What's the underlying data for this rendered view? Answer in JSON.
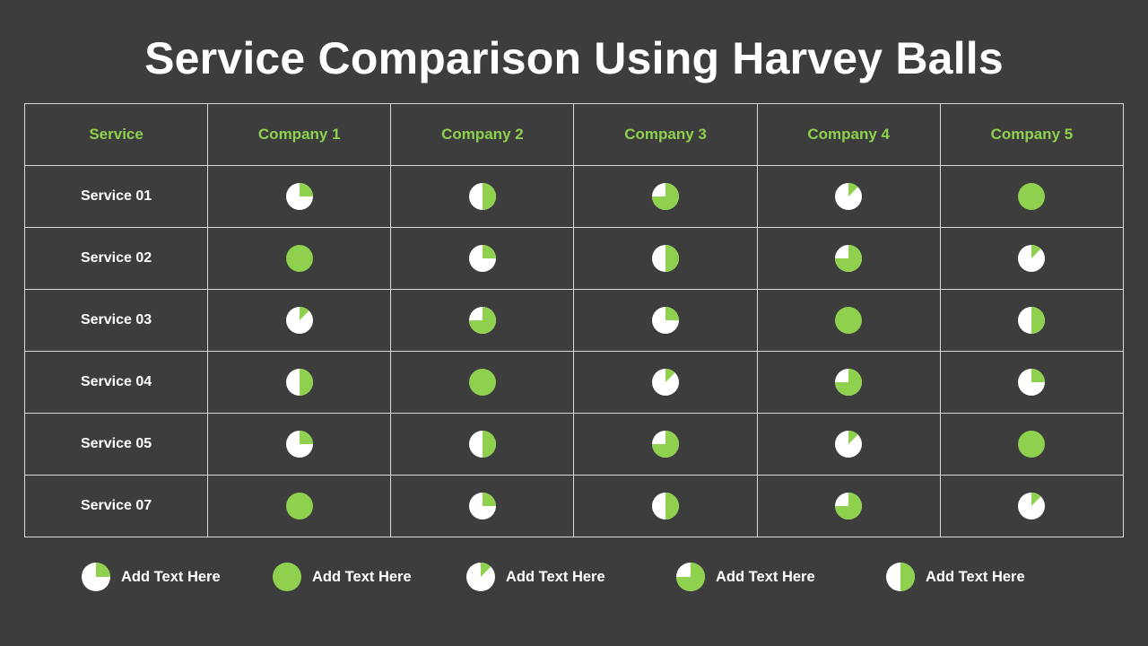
{
  "title": "Service Comparison Using Harvey Balls",
  "colors": {
    "background": "#3d3d3d",
    "accent": "#8fd14f",
    "empty": "#ffffff",
    "grid": "#d9d9d9"
  },
  "table": {
    "header": [
      "Service",
      "Company 1",
      "Company 2",
      "Company 3",
      "Company 4",
      "Company 5"
    ],
    "rows": [
      {
        "service": "Service 01",
        "fills": [
          0.25,
          0.5,
          0.75,
          0.125,
          1
        ]
      },
      {
        "service": "Service 02",
        "fills": [
          1,
          0.25,
          0.5,
          0.75,
          0.125
        ]
      },
      {
        "service": "Service 03",
        "fills": [
          0.125,
          0.75,
          0.25,
          1,
          0.5
        ]
      },
      {
        "service": "Service 04",
        "fills": [
          0.5,
          1,
          0.125,
          0.75,
          0.25
        ]
      },
      {
        "service": "Service 05",
        "fills": [
          0.25,
          0.5,
          0.75,
          0.125,
          1
        ]
      },
      {
        "service": "Service 07",
        "fills": [
          1,
          0.25,
          0.5,
          0.75,
          0.125
        ]
      }
    ]
  },
  "legend": [
    {
      "fill": 0.25,
      "label": "Add Text Here"
    },
    {
      "fill": 1,
      "label": "Add Text Here"
    },
    {
      "fill": 0.125,
      "label": "Add Text Here"
    },
    {
      "fill": 0.75,
      "label": "Add Text Here"
    },
    {
      "fill": 0.5,
      "label": "Add Text Here"
    }
  ]
}
